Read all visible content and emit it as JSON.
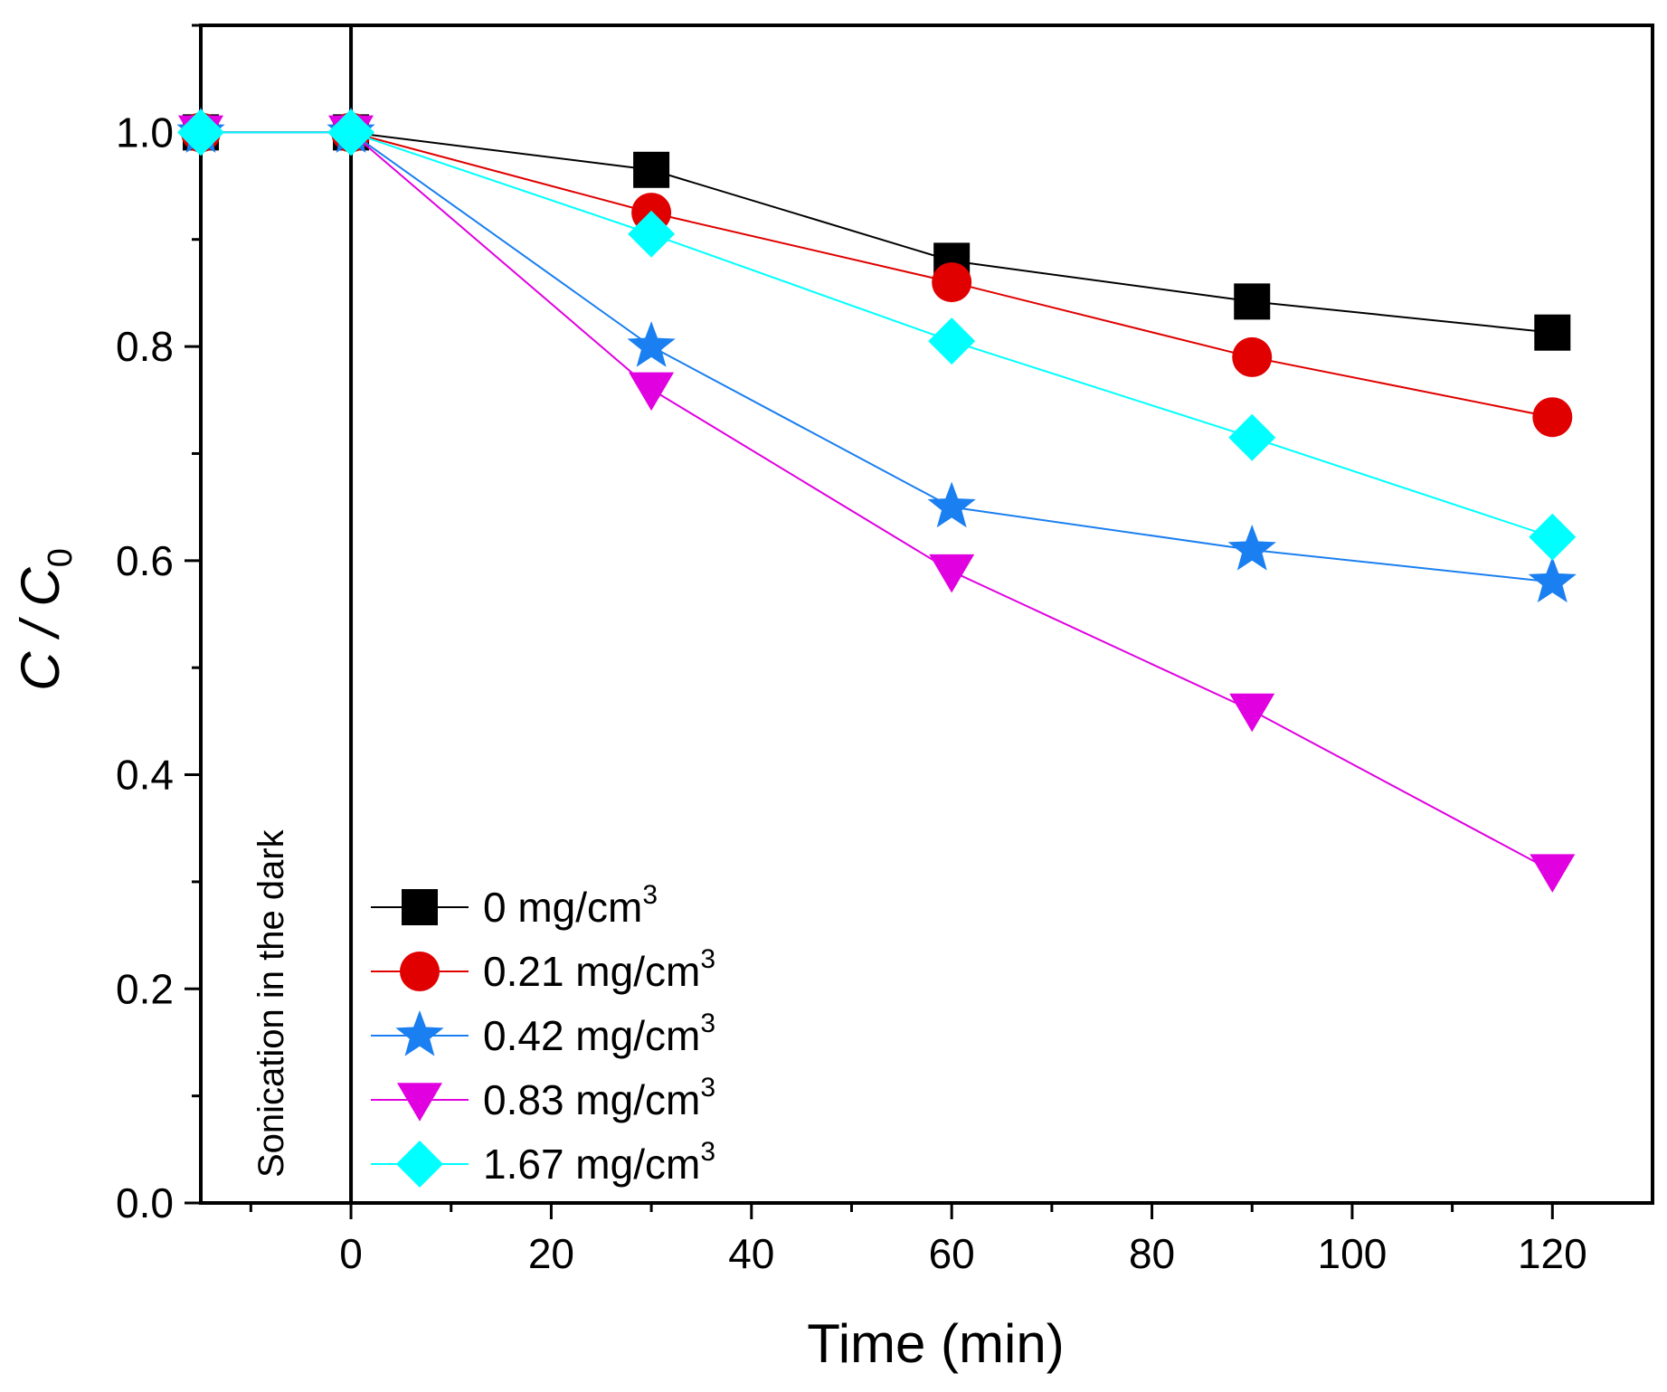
{
  "chart_data": {
    "type": "line",
    "title": "",
    "xlabel": "Time (min)",
    "ylabel": {
      "main": "C / C",
      "sub": "0"
    },
    "xlim": [
      -15,
      130
    ],
    "ylim": [
      0,
      1.1
    ],
    "x_ticks": [
      0,
      20,
      40,
      60,
      80,
      100,
      120
    ],
    "x_tick_labels": [
      "0",
      "20",
      "40",
      "60",
      "80",
      "100",
      "120"
    ],
    "y_ticks": [
      0,
      0.2,
      0.4,
      0.6,
      0.8,
      1.0
    ],
    "y_tick_labels": [
      "0.0",
      "0.2",
      "0.4",
      "0.6",
      "0.8",
      "1.0"
    ],
    "annotation": "Sonication in the dark",
    "vline_x": 0,
    "legend_position": "bottom-left",
    "x": [
      -15,
      0,
      30,
      60,
      90,
      120
    ],
    "series": [
      {
        "name": "0 mg/cm",
        "sup": "3",
        "marker": "square",
        "color": "#000000",
        "values": [
          1.0,
          1.0,
          0.965,
          0.88,
          0.842,
          0.813
        ]
      },
      {
        "name": "0.21 mg/cm",
        "sup": "3",
        "marker": "circle",
        "color": "#e00000",
        "values": [
          1.0,
          1.0,
          0.925,
          0.86,
          0.79,
          0.734
        ]
      },
      {
        "name": "0.42 mg/cm",
        "sup": "3",
        "marker": "star",
        "color": "#1a7ff0",
        "values": [
          1.0,
          1.0,
          0.8,
          0.65,
          0.61,
          0.58
        ]
      },
      {
        "name": "0.83 mg/cm",
        "sup": "3",
        "marker": "triangle-down",
        "color": "#e000e0",
        "values": [
          1.0,
          1.0,
          0.76,
          0.59,
          0.46,
          0.31
        ]
      },
      {
        "name": "1.67 mg/cm",
        "sup": "3",
        "marker": "diamond",
        "color": "#00ffff",
        "values": [
          1.0,
          1.0,
          0.905,
          0.805,
          0.715,
          0.622
        ]
      }
    ]
  }
}
